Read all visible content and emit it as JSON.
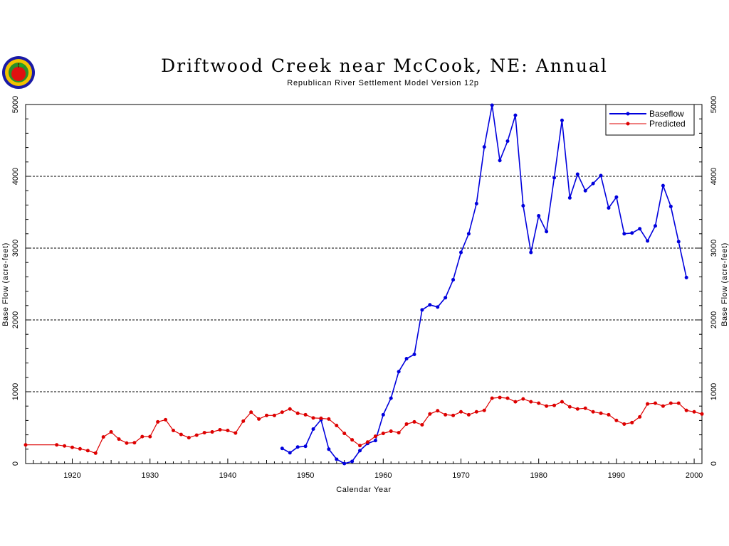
{
  "header": {
    "title": "Driftwood Creek near McCook, NE: Annual",
    "subtitle": "Republican River Settlement Model Version 12p"
  },
  "logo": {
    "icon": "apple-seal-icon"
  },
  "chart_data": {
    "type": "line",
    "xlabel": "Calendar Year",
    "ylabel": "Base Flow (acre-feet)",
    "xlim": [
      1914,
      2001
    ],
    "ylim": [
      0,
      5000
    ],
    "x_ticks": [
      1920,
      1930,
      1940,
      1950,
      1960,
      1970,
      1980,
      1990,
      2000
    ],
    "y_ticks": [
      0,
      1000,
      2000,
      3000,
      4000,
      5000
    ],
    "grid": "horizontal dashed",
    "legend_position": "top-right",
    "series": [
      {
        "name": "Baseflow",
        "color": "#0000dd",
        "x": [
          1947,
          1948,
          1949,
          1950,
          1951,
          1952,
          1953,
          1954,
          1955,
          1956,
          1957,
          1958,
          1959,
          1960,
          1961,
          1962,
          1963,
          1964,
          1965,
          1966,
          1967,
          1968,
          1969,
          1970,
          1971,
          1972,
          1973,
          1974,
          1975,
          1976,
          1977,
          1978,
          1979,
          1980,
          1981,
          1982,
          1983,
          1984,
          1985,
          1986,
          1987,
          1988,
          1989,
          1990,
          1991,
          1992,
          1993,
          1994,
          1995,
          1996,
          1997,
          1998,
          1999
        ],
        "values": [
          210,
          150,
          230,
          240,
          480,
          610,
          200,
          60,
          0,
          30,
          180,
          280,
          320,
          680,
          910,
          1280,
          1460,
          1520,
          2140,
          2210,
          2180,
          2310,
          2560,
          2940,
          3200,
          3620,
          4410,
          4990,
          4220,
          4490,
          4850,
          3590,
          2940,
          3450,
          3230,
          3980,
          4780,
          3700,
          4030,
          3800,
          3900,
          4010,
          3560,
          3710,
          3200,
          3210,
          3270,
          3100,
          3310,
          3870,
          3580,
          3090,
          2590
        ]
      },
      {
        "name": "Predicted",
        "color": "#dd0000",
        "x": [
          1914,
          1918,
          1919,
          1920,
          1921,
          1922,
          1923,
          1924,
          1925,
          1926,
          1927,
          1928,
          1929,
          1930,
          1931,
          1932,
          1933,
          1934,
          1935,
          1936,
          1937,
          1938,
          1939,
          1940,
          1941,
          1942,
          1943,
          1944,
          1945,
          1946,
          1947,
          1948,
          1949,
          1950,
          1951,
          1952,
          1953,
          1954,
          1955,
          1956,
          1957,
          1958,
          1959,
          1960,
          1961,
          1962,
          1963,
          1964,
          1965,
          1966,
          1967,
          1968,
          1969,
          1970,
          1971,
          1972,
          1973,
          1974,
          1975,
          1976,
          1977,
          1978,
          1979,
          1980,
          1981,
          1982,
          1983,
          1984,
          1985,
          1986,
          1987,
          1988,
          1989,
          1990,
          1991,
          1992,
          1993,
          1994,
          1995,
          1996,
          1997,
          1998,
          1999,
          2000,
          2001
        ],
        "values": [
          260,
          260,
          245,
          225,
          205,
          180,
          145,
          370,
          440,
          340,
          285,
          290,
          375,
          375,
          580,
          610,
          460,
          405,
          360,
          395,
          430,
          440,
          470,
          460,
          425,
          590,
          715,
          620,
          670,
          670,
          715,
          760,
          700,
          680,
          635,
          630,
          620,
          530,
          420,
          330,
          250,
          300,
          380,
          420,
          450,
          430,
          550,
          580,
          540,
          690,
          735,
          680,
          670,
          720,
          680,
          720,
          740,
          910,
          920,
          910,
          860,
          900,
          860,
          840,
          800,
          810,
          860,
          790,
          760,
          770,
          720,
          700,
          680,
          600,
          550,
          570,
          650,
          830,
          840,
          800,
          840,
          840,
          740,
          720,
          690
        ]
      }
    ]
  }
}
